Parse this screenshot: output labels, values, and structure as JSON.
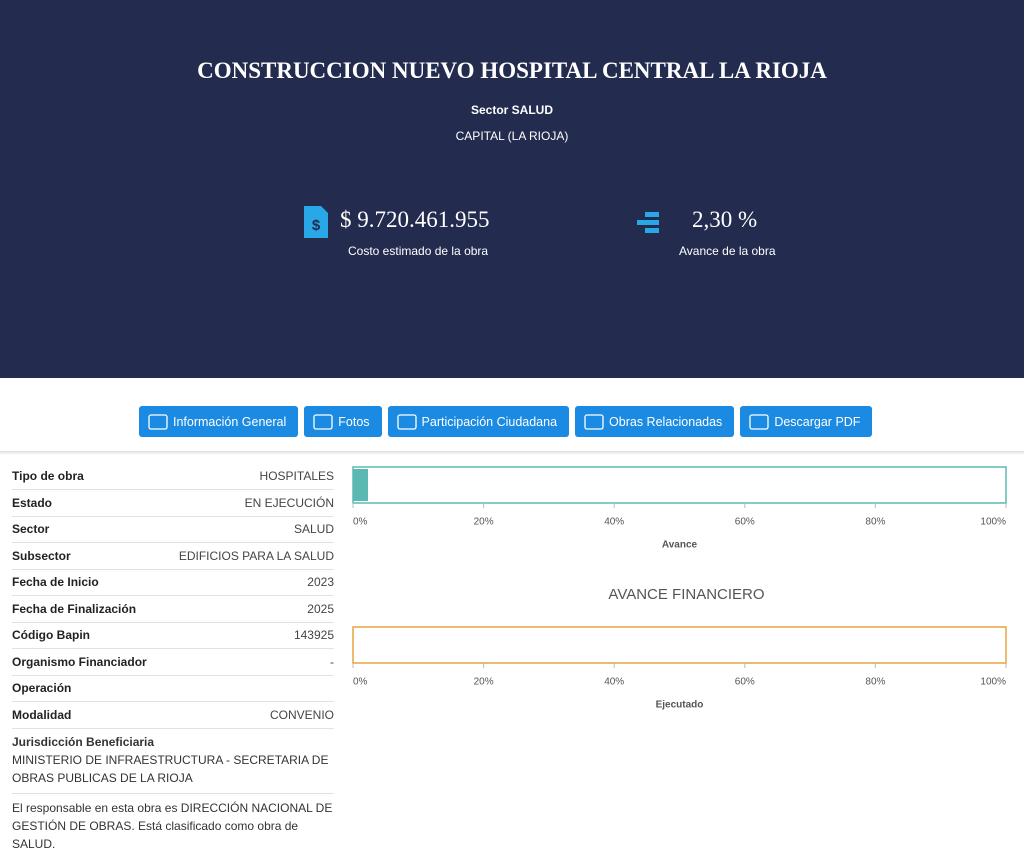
{
  "header": {
    "title": "CONSTRUCCION NUEVO HOSPITAL CENTRAL LA RIOJA",
    "sector": "Sector SALUD",
    "location": "CAPITAL (LA RIOJA)"
  },
  "stats": [
    {
      "value": "$ 9.720.461.955",
      "label": "Costo estimado de la obra"
    },
    {
      "value": "2,30 %",
      "label": "Avance de la obra"
    }
  ],
  "tabs": [
    "Información General",
    "Fotos",
    "Participación Ciudadana",
    "Obras Relacionadas",
    "Descargar PDF"
  ],
  "details": [
    {
      "label": "Tipo de obra",
      "value": "HOSPITALES"
    },
    {
      "label": "Estado",
      "value": "EN EJECUCIÓN"
    },
    {
      "label": "Sector",
      "value": "SALUD"
    },
    {
      "label": "Subsector",
      "value": "EDIFICIOS PARA LA SALUD"
    },
    {
      "label": "Fecha de Inicio",
      "value": "2023"
    },
    {
      "label": "Fecha de Finalización",
      "value": "2025"
    },
    {
      "label": "Código Bapin",
      "value": "143925"
    },
    {
      "label": "Organismo Financiador",
      "value": "-"
    },
    {
      "label": "Operación"
    },
    {
      "label": "Modalidad",
      "value": "CONVENIO"
    }
  ],
  "jurisdiction": {
    "label": "Jurisdicción Beneficiaria",
    "value": "MINISTERIO DE INFRAESTRUCTURA - SECRETARIA DE OBRAS PUBLICAS DE LA RIOJA"
  },
  "note": "El responsable en esta obra es DIRECCIÓN NACIONAL DE GESTIÓN DE OBRAS. Está clasificado como obra de SALUD.",
  "chart_data": [
    {
      "type": "bar",
      "xlabel": "Avance",
      "values": [
        2.3
      ],
      "color": "#5cb8b2",
      "xlim": [
        0,
        100
      ],
      "xticks": [
        {
          "value": 0,
          "label": "0%"
        },
        {
          "value": 20,
          "label": "20%"
        },
        {
          "value": 40,
          "label": "40%"
        },
        {
          "value": 60,
          "label": "60%"
        },
        {
          "value": 80,
          "label": "80%"
        },
        {
          "value": 100,
          "label": "100%"
        }
      ]
    },
    {
      "type": "bar",
      "title": "AVANCE FINANCIERO",
      "xlabel": "Ejecutado",
      "values": [
        0
      ],
      "color": "#e8a33d",
      "xlim": [
        0,
        100
      ],
      "xticks": [
        {
          "value": 0,
          "label": "0%"
        },
        {
          "value": 20,
          "label": "20%"
        },
        {
          "value": 40,
          "label": "40%"
        },
        {
          "value": 60,
          "label": "60%"
        },
        {
          "value": 80,
          "label": "80%"
        },
        {
          "value": 100,
          "label": "100%"
        }
      ]
    }
  ]
}
